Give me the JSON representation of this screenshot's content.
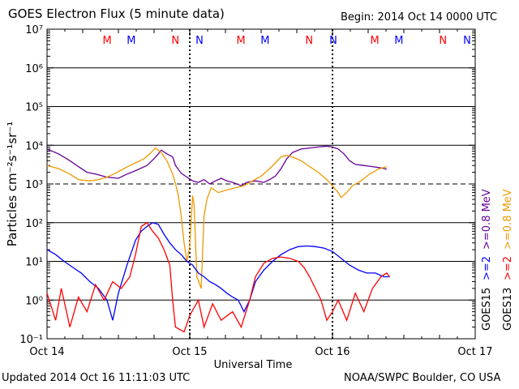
{
  "header": {
    "title": "GOES Electron Flux (5 minute data)",
    "begin": "Begin: 2014 Oct 14 0000 UTC"
  },
  "footer": {
    "updated": "Updated 2014 Oct 16 11:11:03 UTC",
    "credit": "NOAA/SWPC Boulder, CO USA"
  },
  "colors": {
    "goes15_ge2": "#0000ff",
    "goes13_ge2": "#ff0000",
    "goes15_ge08": "#660099",
    "goes13_ge08": "#ee9900",
    "mode_M": [
      "#ff0000",
      "#0000ff"
    ],
    "mode_N": [
      "#ff0000",
      "#0000ff"
    ]
  },
  "chart_data": {
    "type": "line",
    "title": "GOES Electron Flux (5 minute data)",
    "xlabel": "Universal Time",
    "ylabel": "Particles cm⁻²s⁻¹sr⁻¹",
    "y_scale": "log",
    "ylim": [
      0.1,
      10000000
    ],
    "x_ticks": [
      "Oct 14",
      "Oct 15",
      "Oct 16",
      "Oct 17"
    ],
    "x_unit": "days since 2014 Oct 14 0000 UTC",
    "y_ticks": [
      "10⁻¹",
      "10⁰",
      "10¹",
      "10²",
      "10³",
      "10⁴",
      "10⁵",
      "10⁶",
      "10⁷"
    ],
    "threshold_line": 1000,
    "day_boundaries": [
      1,
      2
    ],
    "mode_markers": [
      {
        "label": "M",
        "x": 0.34,
        "sat": "GOES13"
      },
      {
        "label": "M",
        "x": 0.52,
        "sat": "GOES15"
      },
      {
        "label": "N",
        "x": 0.85,
        "sat": "GOES13"
      },
      {
        "label": "N",
        "x": 1.03,
        "sat": "GOES15"
      },
      {
        "label": "M",
        "x": 1.34,
        "sat": "GOES13"
      },
      {
        "label": "M",
        "x": 1.52,
        "sat": "GOES15"
      },
      {
        "label": "N",
        "x": 1.85,
        "sat": "GOES13"
      },
      {
        "label": "N",
        "x": 2.03,
        "sat": "GOES15"
      },
      {
        "label": "M",
        "x": 2.34,
        "sat": "GOES13"
      },
      {
        "label": "M",
        "x": 2.52,
        "sat": "GOES15"
      },
      {
        "label": "N",
        "x": 2.85,
        "sat": "GOES13"
      },
      {
        "label": "N",
        "x": 3.03,
        "sat": "GOES15"
      }
    ],
    "legend": {
      "right_col1": [
        {
          "text": ">=0.8 MeV",
          "series": "GOES15 >=0.8 MeV"
        },
        {
          "text": ">=2",
          "series": "GOES15 >=2 MeV"
        },
        {
          "text": "GOES15",
          "series": ""
        }
      ],
      "right_col2": [
        {
          "text": ">=0.8 MeV",
          "series": "GOES13 >=0.8 MeV"
        },
        {
          "text": ">=2",
          "series": "GOES13 >=2 MeV"
        },
        {
          "text": "GOES13",
          "series": ""
        }
      ]
    },
    "series": [
      {
        "name": "GOES15 >=0.8 MeV",
        "color": "#660099",
        "points": [
          [
            0,
            8000
          ],
          [
            0.08,
            6000
          ],
          [
            0.16,
            4000
          ],
          [
            0.22,
            2800
          ],
          [
            0.28,
            2000
          ],
          [
            0.34,
            1800
          ],
          [
            0.42,
            1500
          ],
          [
            0.5,
            1400
          ],
          [
            0.56,
            1800
          ],
          [
            0.62,
            2200
          ],
          [
            0.7,
            3000
          ],
          [
            0.75,
            4500
          ],
          [
            0.78,
            6000
          ],
          [
            0.8,
            7500
          ],
          [
            0.84,
            6000
          ],
          [
            0.88,
            5000
          ],
          [
            0.9,
            3000
          ],
          [
            0.94,
            1900
          ],
          [
            0.98,
            1500
          ],
          [
            1.02,
            1200
          ],
          [
            1.06,
            1100
          ],
          [
            1.1,
            1300
          ],
          [
            1.14,
            1000
          ],
          [
            1.18,
            1200
          ],
          [
            1.22,
            1400
          ],
          [
            1.26,
            1200
          ],
          [
            1.3,
            1100
          ],
          [
            1.36,
            900
          ],
          [
            1.4,
            1100
          ],
          [
            1.46,
            1200
          ],
          [
            1.52,
            1100
          ],
          [
            1.56,
            1300
          ],
          [
            1.6,
            1600
          ],
          [
            1.64,
            2500
          ],
          [
            1.68,
            4500
          ],
          [
            1.72,
            6500
          ],
          [
            1.78,
            8000
          ],
          [
            1.84,
            8500
          ],
          [
            1.9,
            9000
          ],
          [
            1.96,
            9500
          ],
          [
            2.0,
            9000
          ],
          [
            2.04,
            8000
          ],
          [
            2.08,
            6000
          ],
          [
            2.12,
            4000
          ],
          [
            2.16,
            3200
          ],
          [
            2.22,
            3000
          ],
          [
            2.28,
            2800
          ],
          [
            2.34,
            2600
          ],
          [
            2.38,
            2400
          ]
        ]
      },
      {
        "name": "GOES13 >=0.8 MeV",
        "color": "#ee9900",
        "points": [
          [
            0,
            3000
          ],
          [
            0.08,
            2500
          ],
          [
            0.16,
            1800
          ],
          [
            0.22,
            1300
          ],
          [
            0.3,
            1200
          ],
          [
            0.36,
            1300
          ],
          [
            0.42,
            1500
          ],
          [
            0.48,
            1900
          ],
          [
            0.54,
            2500
          ],
          [
            0.58,
            3000
          ],
          [
            0.62,
            3500
          ],
          [
            0.68,
            4500
          ],
          [
            0.72,
            6000
          ],
          [
            0.76,
            8500
          ],
          [
            0.8,
            6500
          ],
          [
            0.84,
            4000
          ],
          [
            0.88,
            1800
          ],
          [
            0.9,
            1000
          ],
          [
            0.92,
            500
          ],
          [
            0.94,
            150
          ],
          [
            0.96,
            30
          ],
          [
            0.98,
            10
          ],
          [
            1.0,
            25
          ],
          [
            1.02,
            500
          ],
          [
            1.03,
            300
          ],
          [
            1.05,
            4
          ],
          [
            1.08,
            2
          ],
          [
            1.1,
            150
          ],
          [
            1.12,
            400
          ],
          [
            1.15,
            800
          ],
          [
            1.2,
            600
          ],
          [
            1.26,
            700
          ],
          [
            1.32,
            800
          ],
          [
            1.38,
            900
          ],
          [
            1.44,
            1200
          ],
          [
            1.5,
            1600
          ],
          [
            1.56,
            2500
          ],
          [
            1.6,
            3500
          ],
          [
            1.64,
            5000
          ],
          [
            1.68,
            5500
          ],
          [
            1.72,
            5000
          ],
          [
            1.78,
            4000
          ],
          [
            1.84,
            2800
          ],
          [
            1.9,
            2000
          ],
          [
            1.96,
            1300
          ],
          [
            2.0,
            900
          ],
          [
            2.04,
            600
          ],
          [
            2.06,
            450
          ],
          [
            2.1,
            600
          ],
          [
            2.14,
            900
          ],
          [
            2.2,
            1200
          ],
          [
            2.26,
            1800
          ],
          [
            2.32,
            2400
          ],
          [
            2.38,
            2800
          ]
        ]
      },
      {
        "name": "GOES15 >=2 MeV",
        "color": "#0000ff",
        "points": [
          [
            0,
            20
          ],
          [
            0.06,
            15
          ],
          [
            0.12,
            10
          ],
          [
            0.18,
            7
          ],
          [
            0.24,
            5
          ],
          [
            0.3,
            3
          ],
          [
            0.36,
            2
          ],
          [
            0.42,
            1
          ],
          [
            0.46,
            0.3
          ],
          [
            0.5,
            1.5
          ],
          [
            0.56,
            8
          ],
          [
            0.62,
            35
          ],
          [
            0.66,
            60
          ],
          [
            0.7,
            80
          ],
          [
            0.74,
            100
          ],
          [
            0.78,
            90
          ],
          [
            0.82,
            50
          ],
          [
            0.86,
            30
          ],
          [
            0.9,
            20
          ],
          [
            0.94,
            15
          ],
          [
            0.98,
            10
          ],
          [
            1.02,
            8
          ],
          [
            1.06,
            5
          ],
          [
            1.1,
            4
          ],
          [
            1.14,
            3
          ],
          [
            1.18,
            2.5
          ],
          [
            1.22,
            2
          ],
          [
            1.26,
            1.5
          ],
          [
            1.3,
            1.2
          ],
          [
            1.34,
            1
          ],
          [
            1.38,
            0.5
          ],
          [
            1.42,
            1
          ],
          [
            1.46,
            3
          ],
          [
            1.52,
            6
          ],
          [
            1.58,
            10
          ],
          [
            1.64,
            15
          ],
          [
            1.7,
            20
          ],
          [
            1.76,
            24
          ],
          [
            1.82,
            25
          ],
          [
            1.88,
            24
          ],
          [
            1.94,
            22
          ],
          [
            2.0,
            18
          ],
          [
            2.06,
            12
          ],
          [
            2.12,
            8
          ],
          [
            2.18,
            6
          ],
          [
            2.24,
            5
          ],
          [
            2.3,
            5
          ],
          [
            2.36,
            4
          ],
          [
            2.4,
            4
          ]
        ]
      },
      {
        "name": "GOES13 >=2 MeV",
        "color": "#ff0000",
        "points": [
          [
            0,
            1.5
          ],
          [
            0.06,
            0.3
          ],
          [
            0.1,
            2
          ],
          [
            0.16,
            0.2
          ],
          [
            0.22,
            1.2
          ],
          [
            0.28,
            0.5
          ],
          [
            0.34,
            2.5
          ],
          [
            0.4,
            1
          ],
          [
            0.46,
            3
          ],
          [
            0.52,
            2
          ],
          [
            0.58,
            4
          ],
          [
            0.62,
            15
          ],
          [
            0.66,
            80
          ],
          [
            0.7,
            100
          ],
          [
            0.74,
            60
          ],
          [
            0.78,
            40
          ],
          [
            0.82,
            20
          ],
          [
            0.86,
            8
          ],
          [
            0.88,
            1
          ],
          [
            0.9,
            0.2
          ],
          [
            0.96,
            0.15
          ],
          [
            1.0,
            0.4
          ],
          [
            1.06,
            1
          ],
          [
            1.1,
            0.2
          ],
          [
            1.16,
            0.8
          ],
          [
            1.22,
            0.3
          ],
          [
            1.3,
            0.5
          ],
          [
            1.36,
            0.2
          ],
          [
            1.42,
            1
          ],
          [
            1.46,
            4
          ],
          [
            1.52,
            9
          ],
          [
            1.58,
            12
          ],
          [
            1.64,
            13
          ],
          [
            1.7,
            12
          ],
          [
            1.76,
            10
          ],
          [
            1.8,
            7
          ],
          [
            1.84,
            4
          ],
          [
            1.88,
            2
          ],
          [
            1.92,
            1
          ],
          [
            1.96,
            0.3
          ],
          [
            2.0,
            0.5
          ],
          [
            2.04,
            1
          ],
          [
            2.1,
            0.3
          ],
          [
            2.16,
            1.5
          ],
          [
            2.22,
            0.5
          ],
          [
            2.28,
            2
          ],
          [
            2.34,
            4
          ],
          [
            2.38,
            5
          ],
          [
            2.4,
            4
          ]
        ]
      }
    ]
  }
}
